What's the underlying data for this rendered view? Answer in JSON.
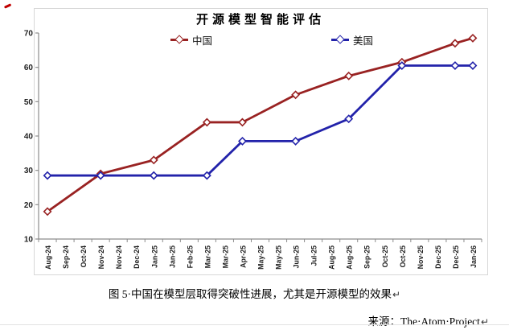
{
  "chart": {
    "title": "开源模型智能评估",
    "frame_border_color": "#d7d7d7",
    "axis_color": "#8c8c8c",
    "label_color": "#1f1f1f"
  },
  "chart_data": {
    "type": "line",
    "title": "开源模型智能评估",
    "categories": [
      "Aug-24",
      "Sep-24",
      "Oct-24",
      "Nov-24",
      "Nov-24",
      "Dec-24",
      "Jan-25",
      "Jan-25",
      "Feb-25",
      "Mar-25",
      "Mar-25",
      "Apr-25",
      "May-25",
      "May-25",
      "Jun-25",
      "Jul-25",
      "Aug-25",
      "Aug-25",
      "Sep-25",
      "Oct-25",
      "Oct-25",
      "Nov-25",
      "Dec-25",
      "Dec-25",
      "Jan-26"
    ],
    "ylim": [
      10,
      70
    ],
    "ytick_step": 10,
    "yticks": [
      10,
      20,
      30,
      40,
      50,
      60,
      70
    ],
    "grid": false,
    "legend_position": "top",
    "marker": "open-diamond",
    "series": [
      {
        "name": "中国",
        "color": "#992222",
        "x_indices": [
          0,
          3,
          6,
          9,
          11,
          14,
          17,
          20,
          23,
          24
        ],
        "values": [
          18,
          29,
          33,
          44,
          44,
          52,
          57.5,
          61.5,
          67,
          68.5
        ]
      },
      {
        "name": "美国",
        "color": "#2222aa",
        "x_indices": [
          0,
          3,
          6,
          9,
          11,
          14,
          17,
          20,
          23,
          24
        ],
        "values": [
          28.5,
          28.5,
          28.5,
          28.5,
          38.5,
          38.5,
          45,
          60.5,
          60.5,
          60.5
        ]
      }
    ]
  },
  "caption": {
    "text": "图 5·中国在模型层取得突破性进展，尤其是开源模型的效果",
    "mark": "↵"
  },
  "source": {
    "text": "来源：The·Atom·Project",
    "mark": "↵"
  },
  "artifact_color": "#c00000"
}
